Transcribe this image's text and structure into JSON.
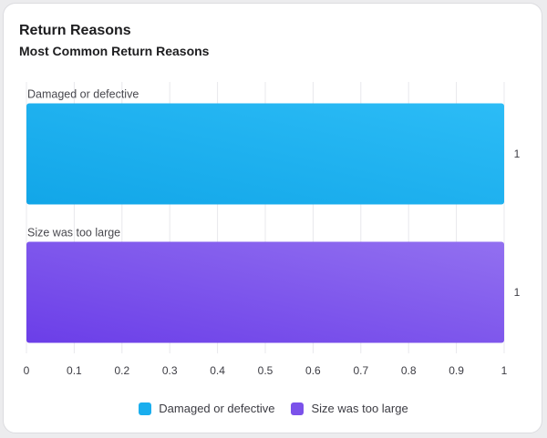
{
  "card": {
    "title": "Return Reasons"
  },
  "chart_data": {
    "type": "bar",
    "orientation": "horizontal",
    "title": "Most Common Return Reasons",
    "categories": [
      "Damaged or defective",
      "Size was too large"
    ],
    "series": [
      {
        "name": "Damaged or defective",
        "values": [
          1,
          null
        ],
        "color": "#1aaeee"
      },
      {
        "name": "Size was too large",
        "values": [
          null,
          1
        ],
        "color": "#7b52ea"
      }
    ],
    "data_labels": [
      "1",
      "1"
    ],
    "xlim": [
      0,
      1
    ],
    "xticks": [
      "0",
      "0.1",
      "0.2",
      "0.3",
      "0.4",
      "0.5",
      "0.6",
      "0.7",
      "0.8",
      "0.9",
      "1"
    ],
    "grid": true,
    "legend_position": "bottom"
  }
}
